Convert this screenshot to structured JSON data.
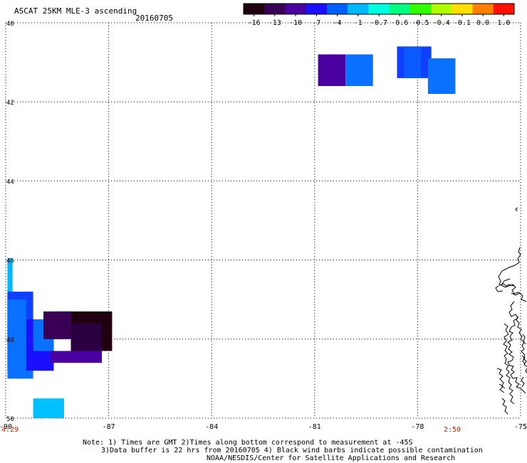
{
  "header": {
    "title": "ASCAT 25KM MLE-3 ascending",
    "date": "20160705"
  },
  "colorbar": {
    "labels": [
      "-16",
      "-13",
      "-10",
      "-7",
      "-4",
      "-1",
      "-0.7",
      "-0.6",
      "-0.5",
      "-0.4",
      "-0.1",
      "0.0",
      "1.0"
    ],
    "colors": [
      "#200010",
      "#3a0055",
      "#4a00a0",
      "#1a10ff",
      "#0060ff",
      "#00b8ff",
      "#00ffe0",
      "#00ff80",
      "#30ff00",
      "#b0ff00",
      "#ffe000",
      "#ff8000",
      "#ff1000"
    ]
  },
  "map": {
    "lon_ticks": [
      "-90",
      "-87",
      "-84",
      "-81",
      "-78",
      "-75"
    ],
    "lat_ticks": [
      "40",
      "42",
      "44",
      "46",
      "48",
      "50"
    ],
    "lon_range": [
      -90,
      -75
    ],
    "lat_range": [
      -40,
      -50
    ],
    "cells": [
      {
        "lon0": -80.9,
        "lon1": -80.1,
        "lat0": -40.8,
        "lat1": -41.6,
        "color": "#4a00a0"
      },
      {
        "lon0": -80.1,
        "lon1": -79.3,
        "lat0": -40.8,
        "lat1": -41.6,
        "color": "#0a70ff"
      },
      {
        "lon0": -78.6,
        "lon1": -77.6,
        "lat0": -40.6,
        "lat1": -41.4,
        "color": "#1040ff"
      },
      {
        "lon0": -78.4,
        "lon1": -77.9,
        "lat0": -40.6,
        "lat1": -41.4,
        "color": "#0a5aff"
      },
      {
        "lon0": -77.7,
        "lon1": -76.9,
        "lat0": -40.9,
        "lat1": -41.8,
        "color": "#0a70ff"
      },
      {
        "lon0": -89.95,
        "lon1": -89.8,
        "lat0": -45.95,
        "lat1": -48.2,
        "color": "#00b8ff"
      },
      {
        "lon0": -89.95,
        "lon1": -89.2,
        "lat0": -46.8,
        "lat1": -48.8,
        "color": "#1040ff"
      },
      {
        "lon0": -89.95,
        "lon1": -89.4,
        "lat0": -47.0,
        "lat1": -48.8,
        "color": "#0a70ff"
      },
      {
        "lon0": -89.4,
        "lon1": -88.6,
        "lat0": -47.5,
        "lat1": -48.8,
        "color": "#1a10ff"
      },
      {
        "lon0": -89.2,
        "lon1": -88.6,
        "lat0": -47.5,
        "lat1": -48.3,
        "color": "#0a70ff"
      },
      {
        "lon0": -89.95,
        "lon1": -89.2,
        "lat0": -48.8,
        "lat1": -49.0,
        "color": "#0a70ff"
      },
      {
        "lon0": -88.9,
        "lon1": -88.1,
        "lat0": -47.3,
        "lat1": -48.0,
        "color": "#3a0055"
      },
      {
        "lon0": -88.5,
        "lon1": -88.1,
        "lat0": -47.3,
        "lat1": -47.6,
        "color": "#3a0055"
      },
      {
        "lon0": -88.7,
        "lon1": -87.2,
        "lat0": -48.3,
        "lat1": -48.6,
        "color": "#4a00a0"
      },
      {
        "lon0": -88.1,
        "lon1": -86.9,
        "lat0": -47.3,
        "lat1": -48.3,
        "color": "#200010"
      },
      {
        "lon0": -88.1,
        "lon1": -87.2,
        "lat0": -47.6,
        "lat1": -48.3,
        "color": "#2a0040"
      },
      {
        "lon0": -89.2,
        "lon1": -88.3,
        "lat0": -49.5,
        "lat1": -50.0,
        "color": "#00c0ff"
      }
    ]
  },
  "bottom": {
    "time_left": "4:29",
    "time_right": "2:50",
    "note_line1": "Note: 1) Times are GMT 2)Times along bottom correspond to measurement at -45S",
    "note_line2": "3)Data buffer is 22 hrs from 20160705 4) Black wind barbs indicate possible contamination",
    "credit": "NOAA/NESDIS/Center for Satellite Applications and Research"
  }
}
